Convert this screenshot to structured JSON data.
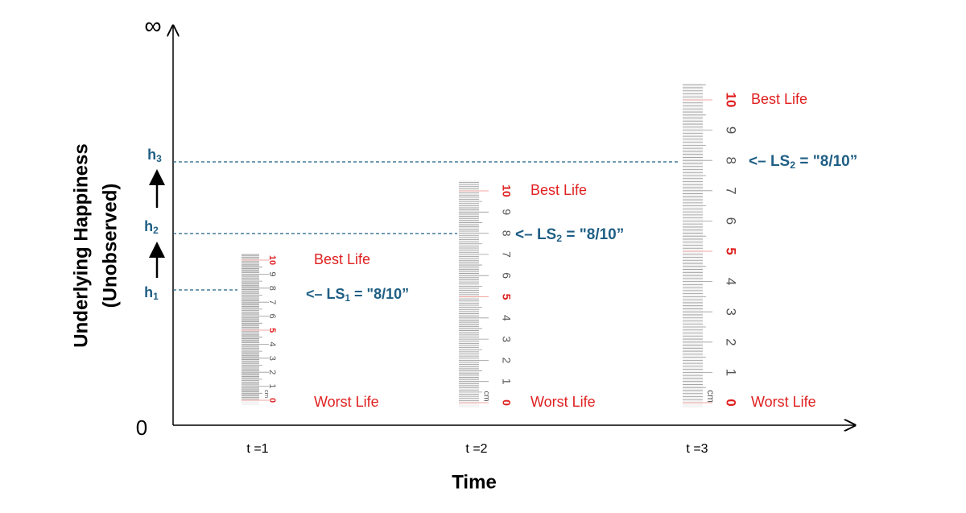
{
  "axis": {
    "y_label_lines": [
      "Underlying Happiness",
      "(Unobserved)"
    ],
    "y_top": "∞",
    "y_bottom": "0",
    "x_label": "Time",
    "x_ticks": [
      "t =1",
      "t =2",
      "t =3"
    ]
  },
  "levels": [
    {
      "base": "h",
      "sub": "1"
    },
    {
      "base": "h",
      "sub": "2"
    },
    {
      "base": "h",
      "sub": "3"
    }
  ],
  "rulers": [
    {
      "unit": "cm",
      "numbers": [
        "0",
        "1",
        "2",
        "3",
        "4",
        "5",
        "6",
        "7",
        "8",
        "9",
        "10"
      ],
      "top_label": "Best Life",
      "bottom_label": "Worst Life",
      "annotation": {
        "prefix": "<– LS",
        "sub": "1",
        "suffix": " = \"8/10”"
      }
    },
    {
      "unit": "cm",
      "numbers": [
        "0",
        "1",
        "2",
        "3",
        "4",
        "5",
        "6",
        "7",
        "8",
        "9",
        "10"
      ],
      "top_label": "Best Life",
      "bottom_label": "Worst Life",
      "annotation": {
        "prefix": "<– LS",
        "sub": "2",
        "suffix": " = \"8/10”"
      }
    },
    {
      "unit": "cm",
      "numbers": [
        "0",
        "1",
        "2",
        "3",
        "4",
        "5",
        "6",
        "7",
        "8",
        "9",
        "10"
      ],
      "top_label": "Best Life",
      "bottom_label": "Worst Life",
      "annotation": {
        "prefix": "<– LS",
        "sub": "2",
        "suffix": " = \"8/10”"
      }
    }
  ]
}
